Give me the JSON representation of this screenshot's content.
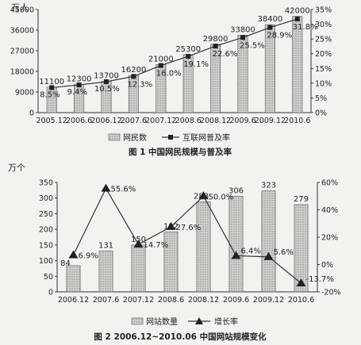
{
  "chart_data": [
    {
      "type": "bar",
      "caption": "图 1  中国网民规模与普及率",
      "left_unit": "万人",
      "categories": [
        "2005.12",
        "2006.6",
        "2006.12",
        "2007.6",
        "2007.12",
        "2008.6",
        "2008.12",
        "2009.6",
        "2009.12",
        "2010.6"
      ],
      "series": [
        {
          "name": "网民数",
          "type": "bar",
          "axis": "left",
          "values": [
            11100,
            12300,
            13700,
            16200,
            21000,
            25300,
            29800,
            33800,
            38400,
            42000
          ],
          "labels": [
            "11100",
            "12300",
            "13700",
            "16200",
            "21000",
            "25300",
            "29800",
            "33800",
            "38400",
            "42000"
          ]
        },
        {
          "name": "互联网普及率",
          "type": "line",
          "axis": "right",
          "values": [
            8.5,
            9.4,
            10.5,
            12.3,
            16.0,
            19.1,
            22.6,
            25.5,
            28.9,
            31.8
          ],
          "labels": [
            "8.5%",
            "9.4%",
            "10.5%",
            "12.3%",
            "16.0%",
            "19.1%",
            "22.6%",
            "25.5%",
            "28.9%",
            "31.8%"
          ]
        }
      ],
      "left_ticks": [
        "0",
        "9000",
        "18000",
        "27000",
        "36000",
        "45000"
      ],
      "right_ticks": [
        "0%",
        "5%",
        "10%",
        "15%",
        "20%",
        "25%",
        "30%",
        "35%"
      ],
      "ylim_left": [
        0,
        45000
      ],
      "ylim_right": [
        0,
        35
      ],
      "legend_position": "bottom"
    },
    {
      "type": "bar",
      "caption": "图 2  2006.12~2010.06 中国网站规模变化",
      "left_unit": "万个",
      "categories": [
        "2006.12",
        "2007.6",
        "2007.12",
        "2008.6",
        "2008.12",
        "2009.6",
        "2009.12",
        "2010.6"
      ],
      "series": [
        {
          "name": "网站数量",
          "type": "bar",
          "axis": "left",
          "values": [
            84,
            131,
            150,
            192,
            288,
            306,
            323,
            279
          ],
          "labels": [
            "84",
            "131",
            "150",
            "192",
            "288",
            "306",
            "323",
            "279"
          ]
        },
        {
          "name": "增长率",
          "type": "line",
          "axis": "right",
          "values": [
            6.9,
            55.6,
            14.7,
            27.6,
            50.0,
            6.4,
            5.6,
            -13.7
          ],
          "labels": [
            "6.9%",
            "55.6%",
            "14.7%",
            "27.6%",
            "50.0%",
            "6.4%",
            "5.6%",
            "-13.7%"
          ]
        }
      ],
      "left_ticks": [
        "0",
        "50",
        "100",
        "150",
        "200",
        "250",
        "300",
        "350"
      ],
      "right_ticks": [
        "-20%",
        "0%",
        "20%",
        "40%",
        "60%"
      ],
      "ylim_left": [
        0,
        350
      ],
      "ylim_right": [
        -20,
        60
      ],
      "legend_position": "bottom"
    }
  ]
}
